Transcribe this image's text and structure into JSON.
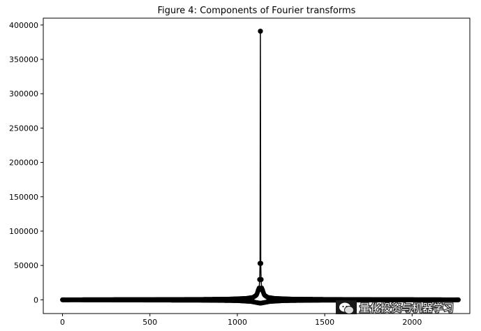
{
  "chart_data": {
    "type": "line",
    "title": "Figure 4: Components of Fourier transforms",
    "xlabel": "",
    "ylabel": "",
    "xlim": [
      -110,
      2330
    ],
    "ylim": [
      -20000,
      410000
    ],
    "xticks": [
      0,
      500,
      1000,
      1500,
      2000
    ],
    "yticks": [
      0,
      50000,
      100000,
      150000,
      200000,
      250000,
      300000,
      350000,
      400000
    ],
    "xtick_labels": [
      "0",
      "500",
      "1000",
      "1500",
      "2000"
    ],
    "ytick_labels": [
      "0",
      "50000",
      "100000",
      "150000",
      "200000",
      "250000",
      "300000",
      "350000",
      "400000"
    ],
    "marker": "o",
    "color": "#000000",
    "grid": false,
    "n_points": 2264,
    "peak": {
      "x": 1132,
      "y": 391000
    },
    "series": [
      {
        "points": [
          [
            0,
            0
          ],
          [
            200,
            200
          ],
          [
            400,
            300
          ],
          [
            600,
            400
          ],
          [
            800,
            600
          ],
          [
            950,
            1000
          ],
          [
            1050,
            2000
          ],
          [
            1090,
            3500
          ],
          [
            1110,
            7000
          ],
          [
            1120,
            14000
          ],
          [
            1125,
            17000
          ],
          [
            1128,
            29500
          ],
          [
            1130,
            53000
          ],
          [
            1132,
            391000
          ],
          [
            1134,
            53000
          ],
          [
            1136,
            29500
          ],
          [
            1139,
            17000
          ],
          [
            1144,
            14000
          ],
          [
            1154,
            7000
          ],
          [
            1174,
            3500
          ],
          [
            1214,
            2000
          ],
          [
            1314,
            1000
          ],
          [
            1500,
            600
          ],
          [
            1700,
            400
          ],
          [
            1900,
            300
          ],
          [
            2100,
            200
          ],
          [
            2264,
            0
          ]
        ]
      },
      {
        "points": [
          [
            0,
            0
          ],
          [
            400,
            -300
          ],
          [
            800,
            -600
          ],
          [
            1000,
            -1200
          ],
          [
            1080,
            -2500
          ],
          [
            1110,
            -4000
          ],
          [
            1132,
            -5000
          ],
          [
            1154,
            -4000
          ],
          [
            1184,
            -2500
          ],
          [
            1264,
            -1200
          ],
          [
            1464,
            -600
          ],
          [
            1864,
            -300
          ],
          [
            2264,
            0
          ]
        ]
      }
    ]
  },
  "watermark": {
    "text": "量化投资与机器学习",
    "icon": "wechat-icon"
  }
}
